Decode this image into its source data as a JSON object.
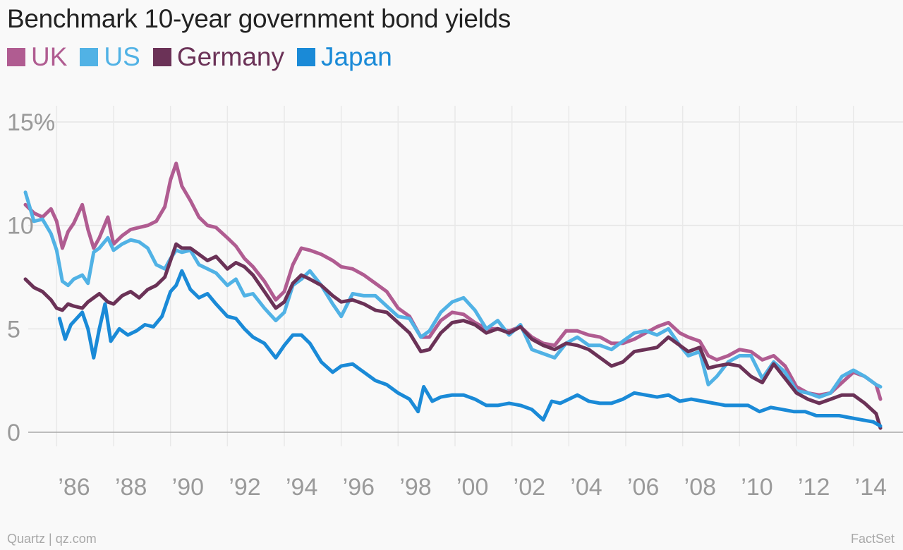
{
  "chart_data": {
    "type": "line",
    "title": "Benchmark 10-year government bond yields",
    "xlabel": "",
    "ylabel": "",
    "xlim": [
      1985.0,
      2015.0
    ],
    "ylim": [
      0,
      15
    ],
    "x_ticks": [
      1986,
      1988,
      1990,
      1992,
      1994,
      1996,
      1998,
      2000,
      2002,
      2004,
      2006,
      2008,
      2010,
      2012,
      2014
    ],
    "x_tick_labels": [
      "’86",
      "’88",
      "’90",
      "’92",
      "’94",
      "’96",
      "’98",
      "’00",
      "’02",
      "’04",
      "’06",
      "’08",
      "’10",
      "’12",
      "’14"
    ],
    "y_ticks": [
      0,
      5,
      10,
      15
    ],
    "y_tick_labels": [
      "0",
      "5",
      "10",
      "15%"
    ],
    "grid": true,
    "legend": "top-left",
    "series": [
      {
        "name": "UK",
        "color": "#b05c91",
        "x": [
          1984.9,
          1985.2,
          1985.5,
          1985.8,
          1986.0,
          1986.2,
          1986.4,
          1986.6,
          1986.9,
          1987.1,
          1987.3,
          1987.5,
          1987.8,
          1988.0,
          1988.3,
          1988.6,
          1988.9,
          1989.2,
          1989.5,
          1989.8,
          1990.0,
          1990.2,
          1990.4,
          1990.7,
          1991.0,
          1991.3,
          1991.6,
          1992.0,
          1992.3,
          1992.6,
          1992.9,
          1993.3,
          1993.7,
          1994.0,
          1994.3,
          1994.6,
          1994.9,
          1995.3,
          1995.7,
          1996.0,
          1996.4,
          1996.8,
          1997.2,
          1997.6,
          1998.0,
          1998.4,
          1998.8,
          1999.1,
          1999.5,
          1999.9,
          2000.3,
          2000.7,
          2001.1,
          2001.5,
          2001.9,
          2002.3,
          2002.7,
          2003.1,
          2003.5,
          2003.9,
          2004.3,
          2004.7,
          2005.1,
          2005.5,
          2005.9,
          2006.3,
          2006.7,
          2007.1,
          2007.5,
          2007.9,
          2008.2,
          2008.6,
          2008.9,
          2009.2,
          2009.6,
          2010.0,
          2010.4,
          2010.8,
          2011.2,
          2011.6,
          2012.0,
          2012.4,
          2012.8,
          2013.2,
          2013.6,
          2014.0,
          2014.4,
          2014.8,
          2014.95
        ],
        "y": [
          11.0,
          10.6,
          10.4,
          10.8,
          10.2,
          8.9,
          9.7,
          10.1,
          11.0,
          9.8,
          8.9,
          9.4,
          10.4,
          9.1,
          9.5,
          9.8,
          9.9,
          10.0,
          10.2,
          10.9,
          12.2,
          13.0,
          11.9,
          11.2,
          10.4,
          10.0,
          9.9,
          9.4,
          9.0,
          8.4,
          8.0,
          7.3,
          6.4,
          6.8,
          8.1,
          8.9,
          8.8,
          8.6,
          8.3,
          8.0,
          7.9,
          7.6,
          7.2,
          6.8,
          6.0,
          5.6,
          4.6,
          4.6,
          5.4,
          5.8,
          5.7,
          5.3,
          5.0,
          5.0,
          4.9,
          5.1,
          4.6,
          4.3,
          4.2,
          4.9,
          4.9,
          4.7,
          4.6,
          4.3,
          4.3,
          4.5,
          4.8,
          5.1,
          5.3,
          4.8,
          4.6,
          4.4,
          3.7,
          3.5,
          3.7,
          4.0,
          3.9,
          3.5,
          3.7,
          3.2,
          2.2,
          1.9,
          1.8,
          1.9,
          2.4,
          2.9,
          2.7,
          2.3,
          1.6
        ]
      },
      {
        "name": "US",
        "color": "#51b2e5",
        "x": [
          1984.9,
          1985.2,
          1985.5,
          1985.8,
          1986.0,
          1986.2,
          1986.4,
          1986.6,
          1986.9,
          1987.1,
          1987.3,
          1987.5,
          1987.8,
          1988.0,
          1988.3,
          1988.6,
          1988.9,
          1989.2,
          1989.5,
          1989.8,
          1990.0,
          1990.2,
          1990.4,
          1990.7,
          1991.0,
          1991.3,
          1991.6,
          1992.0,
          1992.3,
          1992.6,
          1992.9,
          1993.3,
          1993.7,
          1994.0,
          1994.3,
          1994.6,
          1994.9,
          1995.3,
          1995.7,
          1996.0,
          1996.4,
          1996.8,
          1997.2,
          1997.6,
          1998.0,
          1998.4,
          1998.8,
          1999.1,
          1999.5,
          1999.9,
          2000.3,
          2000.7,
          2001.1,
          2001.5,
          2001.9,
          2002.3,
          2002.7,
          2003.1,
          2003.5,
          2003.9,
          2004.3,
          2004.7,
          2005.1,
          2005.5,
          2005.9,
          2006.3,
          2006.7,
          2007.1,
          2007.5,
          2007.9,
          2008.2,
          2008.6,
          2008.9,
          2009.2,
          2009.6,
          2010.0,
          2010.4,
          2010.8,
          2011.2,
          2011.6,
          2012.0,
          2012.4,
          2012.8,
          2013.2,
          2013.6,
          2014.0,
          2014.4,
          2014.8,
          2014.95
        ],
        "y": [
          11.6,
          10.2,
          10.3,
          9.6,
          8.8,
          7.3,
          7.1,
          7.4,
          7.6,
          7.2,
          8.7,
          8.9,
          9.4,
          8.8,
          9.1,
          9.3,
          9.2,
          8.9,
          8.1,
          7.9,
          8.4,
          8.8,
          8.7,
          8.8,
          8.1,
          7.9,
          7.7,
          7.1,
          7.4,
          6.6,
          6.7,
          6.0,
          5.4,
          5.8,
          7.1,
          7.4,
          7.8,
          7.1,
          6.2,
          5.6,
          6.7,
          6.6,
          6.6,
          6.1,
          5.6,
          5.5,
          4.6,
          4.9,
          5.8,
          6.3,
          6.5,
          5.9,
          5.0,
          5.4,
          4.7,
          5.2,
          4.0,
          3.8,
          3.6,
          4.3,
          4.6,
          4.2,
          4.2,
          4.0,
          4.4,
          4.8,
          4.9,
          4.7,
          5.0,
          4.2,
          3.7,
          3.9,
          2.3,
          2.7,
          3.4,
          3.7,
          3.7,
          2.6,
          3.4,
          2.9,
          2.0,
          1.9,
          1.7,
          1.9,
          2.7,
          3.0,
          2.7,
          2.3,
          2.2
        ]
      },
      {
        "name": "Germany",
        "color": "#6b3257",
        "x": [
          1984.9,
          1985.2,
          1985.5,
          1985.8,
          1986.0,
          1986.2,
          1986.4,
          1986.6,
          1986.9,
          1987.1,
          1987.3,
          1987.5,
          1987.8,
          1988.0,
          1988.3,
          1988.6,
          1988.9,
          1989.2,
          1989.5,
          1989.8,
          1990.0,
          1990.2,
          1990.4,
          1990.7,
          1991.0,
          1991.3,
          1991.6,
          1992.0,
          1992.3,
          1992.6,
          1992.9,
          1993.3,
          1993.7,
          1994.0,
          1994.3,
          1994.6,
          1994.9,
          1995.3,
          1995.7,
          1996.0,
          1996.4,
          1996.8,
          1997.2,
          1997.6,
          1998.0,
          1998.4,
          1998.8,
          1999.1,
          1999.5,
          1999.9,
          2000.3,
          2000.7,
          2001.1,
          2001.5,
          2001.9,
          2002.3,
          2002.7,
          2003.1,
          2003.5,
          2003.9,
          2004.3,
          2004.7,
          2005.1,
          2005.5,
          2005.9,
          2006.3,
          2006.7,
          2007.1,
          2007.5,
          2007.9,
          2008.2,
          2008.6,
          2008.9,
          2009.2,
          2009.6,
          2010.0,
          2010.4,
          2010.8,
          2011.2,
          2011.6,
          2012.0,
          2012.4,
          2012.8,
          2013.2,
          2013.6,
          2014.0,
          2014.4,
          2014.8,
          2014.95
        ],
        "y": [
          7.4,
          7.0,
          6.8,
          6.4,
          6.0,
          5.9,
          6.2,
          6.1,
          6.0,
          6.3,
          6.5,
          6.7,
          6.3,
          6.2,
          6.6,
          6.8,
          6.5,
          6.9,
          7.1,
          7.5,
          8.3,
          9.1,
          8.9,
          8.9,
          8.6,
          8.3,
          8.5,
          7.9,
          8.2,
          8.0,
          7.6,
          6.8,
          6.0,
          6.3,
          7.2,
          7.6,
          7.4,
          7.1,
          6.6,
          6.3,
          6.4,
          6.2,
          5.9,
          5.8,
          5.3,
          4.8,
          3.9,
          4.0,
          4.8,
          5.3,
          5.4,
          5.2,
          4.8,
          5.0,
          4.8,
          5.1,
          4.5,
          4.2,
          4.0,
          4.3,
          4.2,
          4.0,
          3.6,
          3.2,
          3.4,
          3.9,
          4.0,
          4.1,
          4.6,
          4.2,
          3.9,
          4.1,
          3.1,
          3.2,
          3.3,
          3.2,
          2.7,
          2.4,
          3.3,
          2.6,
          1.9,
          1.6,
          1.4,
          1.6,
          1.8,
          1.8,
          1.4,
          0.9,
          0.2
        ]
      },
      {
        "name": "Japan",
        "color": "#1a8ad7",
        "x": [
          1986.1,
          1986.3,
          1986.5,
          1986.7,
          1986.9,
          1987.1,
          1987.3,
          1987.5,
          1987.7,
          1987.9,
          1988.2,
          1988.5,
          1988.8,
          1989.1,
          1989.4,
          1989.7,
          1990.0,
          1990.2,
          1990.4,
          1990.7,
          1991.0,
          1991.3,
          1991.6,
          1992.0,
          1992.3,
          1992.6,
          1992.9,
          1993.3,
          1993.7,
          1994.0,
          1994.3,
          1994.6,
          1994.9,
          1995.3,
          1995.7,
          1996.0,
          1996.4,
          1996.8,
          1997.2,
          1997.6,
          1998.0,
          1998.4,
          1998.7,
          1998.9,
          1999.2,
          1999.5,
          1999.9,
          2000.3,
          2000.7,
          2001.1,
          2001.5,
          2001.9,
          2002.3,
          2002.7,
          2003.1,
          2003.4,
          2003.7,
          2004.0,
          2004.3,
          2004.7,
          2005.1,
          2005.5,
          2005.9,
          2006.3,
          2006.7,
          2007.1,
          2007.5,
          2007.9,
          2008.3,
          2008.7,
          2009.1,
          2009.5,
          2009.9,
          2010.3,
          2010.7,
          2011.1,
          2011.5,
          2011.9,
          2012.3,
          2012.7,
          2013.1,
          2013.5,
          2013.9,
          2014.3,
          2014.7,
          2014.95
        ],
        "y": [
          5.5,
          4.5,
          5.2,
          5.5,
          5.8,
          5.0,
          3.6,
          5.0,
          6.2,
          4.4,
          5.0,
          4.7,
          4.9,
          5.2,
          5.1,
          5.6,
          6.8,
          7.1,
          7.8,
          6.9,
          6.5,
          6.7,
          6.2,
          5.6,
          5.5,
          5.0,
          4.6,
          4.3,
          3.6,
          4.2,
          4.7,
          4.7,
          4.3,
          3.4,
          2.9,
          3.2,
          3.3,
          2.9,
          2.5,
          2.3,
          1.9,
          1.6,
          1.0,
          2.2,
          1.5,
          1.7,
          1.8,
          1.8,
          1.6,
          1.3,
          1.3,
          1.4,
          1.3,
          1.1,
          0.6,
          1.5,
          1.4,
          1.6,
          1.8,
          1.5,
          1.4,
          1.4,
          1.6,
          1.9,
          1.8,
          1.7,
          1.8,
          1.5,
          1.6,
          1.5,
          1.4,
          1.3,
          1.3,
          1.3,
          1.0,
          1.2,
          1.1,
          1.0,
          1.0,
          0.8,
          0.8,
          0.8,
          0.7,
          0.6,
          0.5,
          0.3
        ]
      }
    ]
  },
  "footer": {
    "source_left": "Quartz | qz.com",
    "source_right": "FactSet"
  }
}
